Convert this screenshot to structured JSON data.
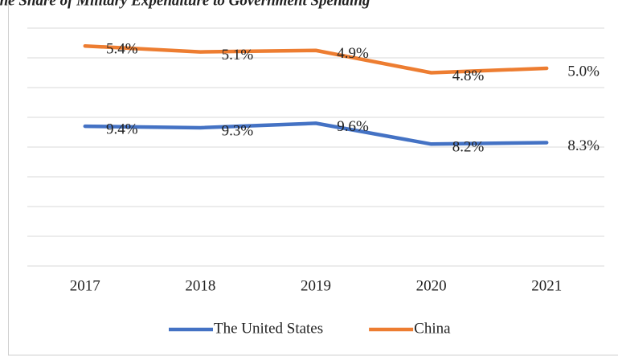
{
  "chart_data": {
    "type": "line",
    "stacked": true,
    "title": "The Share of Military Expenditure to Government Spending",
    "categories": [
      "2017",
      "2018",
      "2019",
      "2020",
      "2021"
    ],
    "series": [
      {
        "name": "The United States",
        "color": "#4472c4",
        "values": [
          9.4,
          9.3,
          9.6,
          8.2,
          8.3
        ],
        "value_labels": [
          "9.4%",
          "9.3%",
          "9.6%",
          "8.2%",
          "8.3%"
        ]
      },
      {
        "name": "China",
        "color": "#ed7d31",
        "values": [
          5.4,
          5.1,
          4.9,
          4.8,
          5.0
        ],
        "value_labels": [
          "5.4%",
          "5.1%",
          "4.9%",
          "4.8%",
          "5.0%"
        ]
      }
    ],
    "ylim": [
      0,
      16
    ],
    "yticks": [
      0,
      2,
      4,
      6,
      8,
      10,
      12,
      14,
      16
    ],
    "grid": true,
    "legend": "bottom"
  }
}
